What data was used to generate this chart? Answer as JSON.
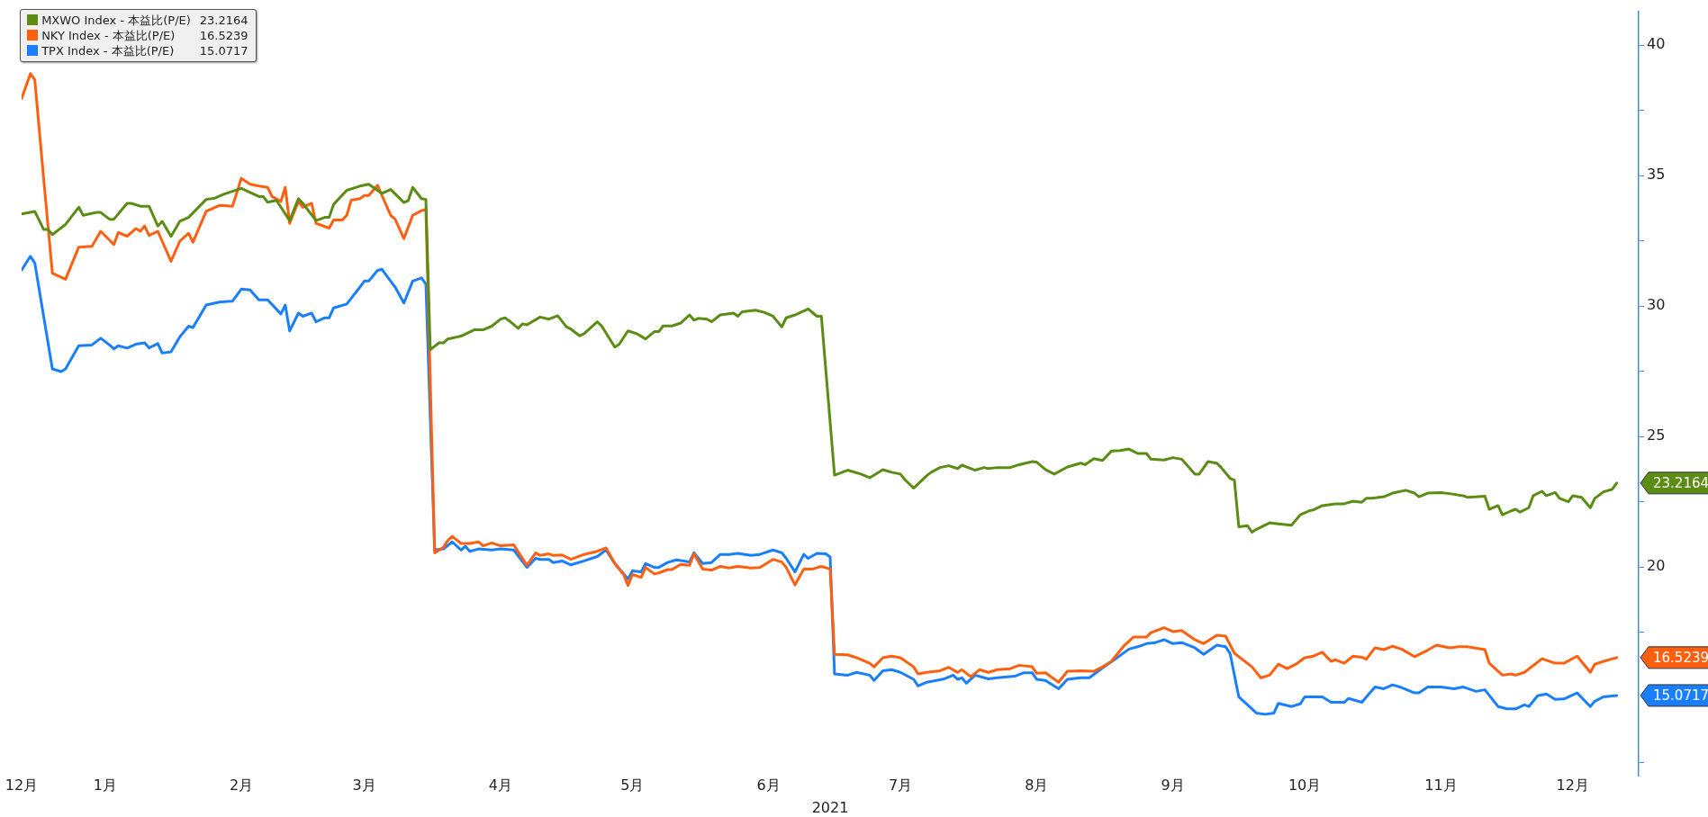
{
  "chart_data": {
    "type": "line",
    "xlabel": "2021",
    "legend": "top left",
    "grid": false,
    "marker": "none",
    "line_style": "solid",
    "xlim": [
      "2020-12-28",
      "2021-12-31"
    ],
    "xticks": [
      {
        "value": "2020-12-28",
        "label": "12月"
      },
      {
        "value": "2021-01-16",
        "label": "1月"
      },
      {
        "value": "2021-02-16",
        "label": "2月"
      },
      {
        "value": "2021-03-16",
        "label": "3月"
      },
      {
        "value": "2021-04-16",
        "label": "4月"
      },
      {
        "value": "2021-05-16",
        "label": "5月"
      },
      {
        "value": "2021-06-16",
        "label": "6月"
      },
      {
        "value": "2021-07-16",
        "label": "7月"
      },
      {
        "value": "2021-08-16",
        "label": "8月"
      },
      {
        "value": "2021-09-16",
        "label": "9月"
      },
      {
        "value": "2021-10-16",
        "label": "10月"
      },
      {
        "value": "2021-11-16",
        "label": "11月"
      },
      {
        "value": "2021-12-16",
        "label": "12月"
      }
    ],
    "ylim": [
      12,
      41.3
    ],
    "yticks": [
      {
        "value": 12.5,
        "label": null
      },
      {
        "value": 17.5,
        "label": null
      },
      20,
      {
        "value": 22.5,
        "label": null
      },
      25,
      {
        "value": 27.5,
        "label": null
      },
      30,
      {
        "value": 32.5,
        "label": null
      },
      35,
      {
        "value": 37.5,
        "label": null
      },
      40
    ],
    "series": [
      {
        "name": "MXWO Index - 本益比(P/E)",
        "color": "#5b8c14",
        "x": [
          "2020-12-28",
          "2020-12-31",
          "2021-01-02",
          "2021-01-03",
          "2021-01-04",
          "2021-01-07",
          "2021-01-10",
          "2021-01-11",
          "2021-01-14",
          "2021-01-15",
          "2021-01-17",
          "2021-01-18",
          "2021-01-21",
          "2021-01-22",
          "2021-01-24",
          "2021-01-26",
          "2021-01-28",
          "2021-01-29",
          "2021-01-31",
          "2021-02-02",
          "2021-02-04",
          "2021-02-08",
          "2021-02-10",
          "2021-02-12",
          "2021-02-16",
          "2021-02-20",
          "2021-02-21",
          "2021-02-22",
          "2021-02-24",
          "2021-02-27",
          "2021-03-01",
          "2021-03-02",
          "2021-03-05",
          "2021-03-07",
          "2021-03-08",
          "2021-03-09",
          "2021-03-12",
          "2021-03-15",
          "2021-03-17",
          "2021-03-19",
          "2021-03-20",
          "2021-03-22",
          "2021-03-25",
          "2021-03-26",
          "2021-03-27",
          "2021-03-29",
          "2021-03-30",
          "2021-03-31",
          "2021-04-02",
          "2021-04-03",
          "2021-04-04",
          "2021-04-07",
          "2021-04-10",
          "2021-04-12",
          "2021-04-14",
          "2021-04-16",
          "2021-04-17",
          "2021-04-18",
          "2021-04-20",
          "2021-04-21",
          "2021-04-22",
          "2021-04-25",
          "2021-04-27",
          "2021-04-29",
          "2021-05-01",
          "2021-05-02",
          "2021-05-04",
          "2021-05-05",
          "2021-05-08",
          "2021-05-09",
          "2021-05-12",
          "2021-05-13",
          "2021-05-15",
          "2021-05-17",
          "2021-05-19",
          "2021-05-21",
          "2021-05-22",
          "2021-05-23",
          "2021-05-25",
          "2021-05-27",
          "2021-05-29",
          "2021-05-30",
          "2021-05-31",
          "2021-06-02",
          "2021-06-03",
          "2021-06-05",
          "2021-06-08",
          "2021-06-09",
          "2021-06-10",
          "2021-06-13",
          "2021-06-15",
          "2021-06-17",
          "2021-06-19",
          "2021-06-20",
          "2021-06-22",
          "2021-06-24",
          "2021-06-25",
          "2021-06-27",
          "2021-06-28",
          "2021-07-01",
          "2021-07-04",
          "2021-07-07",
          "2021-07-09",
          "2021-07-12",
          "2021-07-14",
          "2021-07-16",
          "2021-07-17",
          "2021-07-19",
          "2021-07-22",
          "2021-07-23",
          "2021-07-25",
          "2021-07-27",
          "2021-07-29",
          "2021-07-30",
          "2021-08-02",
          "2021-08-04",
          "2021-08-05",
          "2021-08-07",
          "2021-08-10",
          "2021-08-12",
          "2021-08-15",
          "2021-08-16",
          "2021-08-18",
          "2021-08-20",
          "2021-08-23",
          "2021-08-26",
          "2021-08-27",
          "2021-08-29",
          "2021-08-31",
          "2021-09-02",
          "2021-09-04",
          "2021-09-06",
          "2021-09-08",
          "2021-09-10",
          "2021-09-11",
          "2021-09-14",
          "2021-09-16",
          "2021-09-18",
          "2021-09-19",
          "2021-09-21",
          "2021-09-22",
          "2021-09-24",
          "2021-09-26",
          "2021-09-27",
          "2021-09-29",
          "2021-09-30",
          "2021-10-01",
          "2021-10-03",
          "2021-10-04",
          "2021-10-05",
          "2021-10-08",
          "2021-10-10",
          "2021-10-13",
          "2021-10-15",
          "2021-10-17",
          "2021-10-18",
          "2021-10-20",
          "2021-10-23",
          "2021-10-25",
          "2021-10-27",
          "2021-10-29",
          "2021-10-30",
          "2021-10-31",
          "2021-11-03",
          "2021-11-05",
          "2021-11-08",
          "2021-11-10",
          "2021-11-11",
          "2021-11-13",
          "2021-11-16",
          "2021-11-18",
          "2021-11-21",
          "2021-11-22",
          "2021-11-26",
          "2021-11-27",
          "2021-11-29",
          "2021-11-30",
          "2021-12-02",
          "2021-12-03",
          "2021-12-04",
          "2021-12-06",
          "2021-12-07",
          "2021-12-09",
          "2021-12-10",
          "2021-12-12",
          "2021-12-13",
          "2021-12-15",
          "2021-12-16",
          "2021-12-18",
          "2021-12-20",
          "2021-12-21",
          "2021-12-23",
          "2021-12-25",
          "2021-12-26"
        ],
        "values": [
          33.53,
          33.63,
          32.94,
          32.94,
          32.74,
          33.13,
          33.79,
          33.48,
          33.59,
          33.59,
          33.33,
          33.33,
          33.94,
          33.94,
          33.83,
          33.83,
          33.07,
          33.25,
          32.67,
          33.25,
          33.4,
          34.09,
          34.14,
          34.29,
          34.51,
          34.2,
          34.2,
          33.98,
          34.05,
          33.28,
          34.12,
          33.94,
          33.28,
          33.4,
          33.4,
          33.9,
          34.44,
          34.6,
          34.67,
          34.44,
          34.32,
          34.47,
          33.97,
          34.05,
          34.55,
          34.12,
          34.09,
          28.33,
          28.59,
          28.59,
          28.74,
          28.85,
          29.09,
          29.09,
          29.23,
          29.5,
          29.55,
          29.43,
          29.15,
          29.32,
          29.28,
          29.58,
          29.5,
          29.63,
          29.2,
          29.12,
          28.86,
          28.94,
          29.4,
          29.24,
          28.43,
          28.54,
          29.05,
          28.94,
          28.74,
          29.02,
          29.02,
          29.24,
          29.24,
          29.35,
          29.66,
          29.46,
          29.53,
          29.5,
          29.4,
          29.66,
          29.73,
          29.61,
          29.78,
          29.84,
          29.76,
          29.61,
          29.2,
          29.55,
          29.66,
          29.81,
          29.89,
          29.61,
          29.61,
          23.52,
          23.71,
          23.56,
          23.42,
          23.73,
          23.63,
          23.56,
          23.35,
          23.02,
          23.5,
          23.63,
          23.81,
          23.88,
          23.77,
          23.9,
          23.71,
          23.81,
          23.77,
          23.81,
          23.81,
          23.92,
          24.04,
          24.02,
          23.73,
          23.56,
          23.83,
          23.98,
          23.92,
          24.15,
          24.08,
          24.44,
          24.46,
          24.52,
          24.35,
          24.35,
          24.13,
          24.1,
          24.19,
          24.13,
          23.94,
          23.56,
          23.56,
          24.04,
          23.98,
          23.81,
          23.4,
          23.33,
          21.54,
          21.58,
          21.33,
          21.44,
          21.69,
          21.65,
          21.6,
          22.0,
          22.15,
          22.19,
          22.35,
          22.42,
          22.42,
          22.52,
          22.48,
          22.63,
          22.63,
          22.69,
          22.83,
          22.94,
          22.83,
          22.69,
          22.83,
          22.85,
          22.81,
          22.73,
          22.67,
          22.71,
          22.21,
          22.35,
          22.0,
          22.15,
          22.21,
          22.1,
          22.27,
          22.73,
          22.9,
          22.73,
          22.85,
          22.63,
          22.5,
          22.73,
          22.67,
          22.27,
          22.63,
          22.88,
          22.98,
          23.2164
        ]
      },
      {
        "name": "NKY Index - 本益比(P/E)",
        "color": "#ff6010",
        "x": [
          "2020-12-28",
          "2020-12-30",
          "2020-12-31",
          "2021-01-02",
          "2021-01-04",
          "2021-01-07",
          "2021-01-10",
          "2021-01-13",
          "2021-01-15",
          "2021-01-18",
          "2021-01-19",
          "2021-01-21",
          "2021-01-23",
          "2021-01-24",
          "2021-01-25",
          "2021-01-26",
          "2021-01-28",
          "2021-01-31",
          "2021-02-02",
          "2021-02-04",
          "2021-02-05",
          "2021-02-08",
          "2021-02-11",
          "2021-02-14",
          "2021-02-16",
          "2021-02-18",
          "2021-02-20",
          "2021-02-22",
          "2021-02-23",
          "2021-02-25",
          "2021-02-26",
          "2021-02-27",
          "2021-03-01",
          "2021-03-02",
          "2021-03-04",
          "2021-03-05",
          "2021-03-08",
          "2021-03-09",
          "2021-03-11",
          "2021-03-12",
          "2021-03-13",
          "2021-03-15",
          "2021-03-16",
          "2021-03-17",
          "2021-03-19",
          "2021-03-20",
          "2021-03-22",
          "2021-03-23",
          "2021-03-25",
          "2021-03-27",
          "2021-03-29",
          "2021-03-30",
          "2021-04-01",
          "2021-04-03",
          "2021-04-04",
          "2021-04-05",
          "2021-04-07",
          "2021-04-09",
          "2021-04-11",
          "2021-04-12",
          "2021-04-14",
          "2021-04-16",
          "2021-04-19",
          "2021-04-22",
          "2021-04-24",
          "2021-04-25",
          "2021-04-27",
          "2021-04-28",
          "2021-04-30",
          "2021-05-02",
          "2021-05-05",
          "2021-05-08",
          "2021-05-10",
          "2021-05-12",
          "2021-05-14",
          "2021-05-15",
          "2021-05-16",
          "2021-05-18",
          "2021-05-19",
          "2021-05-21",
          "2021-05-22",
          "2021-05-24",
          "2021-05-25",
          "2021-05-27",
          "2021-05-29",
          "2021-05-30",
          "2021-06-01",
          "2021-06-03",
          "2021-06-05",
          "2021-06-07",
          "2021-06-09",
          "2021-06-12",
          "2021-06-14",
          "2021-06-17",
          "2021-06-19",
          "2021-06-20",
          "2021-06-22",
          "2021-06-24",
          "2021-06-26",
          "2021-06-28",
          "2021-06-30",
          "2021-07-01",
          "2021-07-04",
          "2021-07-06",
          "2021-07-09",
          "2021-07-10",
          "2021-07-12",
          "2021-07-14",
          "2021-07-16",
          "2021-07-19",
          "2021-07-20",
          "2021-07-22",
          "2021-07-25",
          "2021-07-27",
          "2021-07-29",
          "2021-07-30",
          "2021-08-01",
          "2021-08-03",
          "2021-08-05",
          "2021-08-07",
          "2021-08-10",
          "2021-08-12",
          "2021-08-15",
          "2021-08-16",
          "2021-08-18",
          "2021-08-21",
          "2021-08-23",
          "2021-08-26",
          "2021-08-29",
          "2021-08-31",
          "2021-09-02",
          "2021-09-05",
          "2021-09-07",
          "2021-09-10",
          "2021-09-11",
          "2021-09-14",
          "2021-09-16",
          "2021-09-18",
          "2021-09-21",
          "2021-09-23",
          "2021-09-26",
          "2021-09-28",
          "2021-09-30",
          "2021-10-04",
          "2021-10-06",
          "2021-10-08",
          "2021-10-10",
          "2021-10-12",
          "2021-10-14",
          "2021-10-16",
          "2021-10-18",
          "2021-10-20",
          "2021-10-22",
          "2021-10-23",
          "2021-10-25",
          "2021-10-27",
          "2021-10-29",
          "2021-10-30",
          "2021-11-01",
          "2021-11-03",
          "2021-11-05",
          "2021-11-07",
          "2021-11-10",
          "2021-11-13",
          "2021-11-15",
          "2021-11-18",
          "2021-11-20",
          "2021-11-22",
          "2021-11-26",
          "2021-11-27",
          "2021-11-30",
          "2021-12-02",
          "2021-12-03",
          "2021-12-05",
          "2021-12-09",
          "2021-12-12",
          "2021-12-14",
          "2021-12-17",
          "2021-12-20",
          "2021-12-21",
          "2021-12-23",
          "2021-12-26"
        ],
        "values": [
          37.96,
          38.91,
          38.68,
          34.93,
          31.26,
          31.03,
          32.26,
          32.29,
          32.87,
          32.36,
          32.82,
          32.68,
          32.97,
          32.87,
          33.07,
          32.71,
          32.87,
          31.72,
          32.49,
          32.79,
          32.45,
          33.63,
          33.86,
          33.83,
          34.9,
          34.67,
          34.6,
          34.55,
          34.2,
          34.01,
          34.55,
          33.17,
          34.01,
          33.79,
          33.94,
          33.17,
          32.99,
          33.3,
          33.3,
          33.48,
          34.06,
          34.12,
          34.24,
          34.24,
          34.63,
          34.24,
          33.48,
          33.33,
          32.59,
          33.48,
          33.66,
          33.71,
          20.54,
          20.75,
          21.02,
          21.17,
          20.9,
          20.9,
          20.96,
          20.81,
          20.92,
          20.81,
          20.85,
          20.06,
          20.54,
          20.44,
          20.5,
          20.44,
          20.46,
          20.29,
          20.48,
          20.6,
          20.73,
          20.13,
          19.71,
          19.29,
          19.71,
          19.6,
          19.98,
          19.73,
          19.77,
          19.9,
          19.9,
          20.1,
          20.06,
          20.5,
          19.92,
          19.88,
          20.02,
          19.96,
          20.02,
          19.96,
          19.98,
          20.29,
          20.19,
          19.98,
          19.31,
          19.92,
          19.92,
          20.02,
          19.92,
          16.65,
          16.63,
          16.52,
          16.31,
          16.17,
          16.52,
          16.58,
          16.52,
          16.17,
          15.9,
          15.96,
          16.02,
          16.15,
          15.96,
          16.06,
          15.79,
          16.06,
          15.96,
          16.06,
          16.1,
          16.23,
          16.17,
          15.92,
          15.94,
          15.58,
          16.0,
          16.02,
          16.0,
          16.17,
          16.38,
          17.0,
          17.31,
          17.31,
          17.48,
          17.67,
          17.52,
          17.56,
          17.21,
          17.06,
          17.38,
          17.35,
          16.69,
          16.17,
          15.75,
          15.85,
          16.27,
          16.1,
          16.27,
          16.52,
          16.58,
          16.73,
          16.38,
          16.44,
          16.31,
          16.58,
          16.54,
          16.46,
          16.9,
          16.83,
          16.96,
          16.85,
          16.56,
          16.81,
          17.0,
          16.9,
          16.94,
          16.94,
          16.83,
          16.31,
          15.85,
          15.9,
          15.85,
          15.96,
          16.48,
          16.31,
          16.31,
          16.58,
          15.96,
          16.27,
          16.38,
          16.5239
        ]
      },
      {
        "name": "TPX Index - 本益比(P/E)",
        "color": "#1a7fff",
        "x": [
          "2020-12-28",
          "2020-12-30",
          "2020-12-31",
          "2021-01-04",
          "2021-01-06",
          "2021-01-07",
          "2021-01-10",
          "2021-01-13",
          "2021-01-15",
          "2021-01-17",
          "2021-01-18",
          "2021-01-19",
          "2021-01-21",
          "2021-01-23",
          "2021-01-25",
          "2021-01-26",
          "2021-01-28",
          "2021-01-29",
          "2021-01-31",
          "2021-02-02",
          "2021-02-04",
          "2021-02-05",
          "2021-02-08",
          "2021-02-11",
          "2021-02-14",
          "2021-02-16",
          "2021-02-18",
          "2021-02-20",
          "2021-02-22",
          "2021-02-25",
          "2021-02-26",
          "2021-02-27",
          "2021-03-01",
          "2021-03-02",
          "2021-03-04",
          "2021-03-05",
          "2021-03-07",
          "2021-03-08",
          "2021-03-09",
          "2021-03-12",
          "2021-03-15",
          "2021-03-16",
          "2021-03-17",
          "2021-03-19",
          "2021-03-20",
          "2021-03-23",
          "2021-03-25",
          "2021-03-27",
          "2021-03-29",
          "2021-03-30",
          "2021-04-01",
          "2021-04-03",
          "2021-04-05",
          "2021-04-07",
          "2021-04-08",
          "2021-04-09",
          "2021-04-11",
          "2021-04-14",
          "2021-04-16",
          "2021-04-19",
          "2021-04-22",
          "2021-04-24",
          "2021-04-25",
          "2021-04-27",
          "2021-04-28",
          "2021-04-30",
          "2021-05-02",
          "2021-05-05",
          "2021-05-08",
          "2021-05-10",
          "2021-05-12",
          "2021-05-15",
          "2021-05-16",
          "2021-05-18",
          "2021-05-19",
          "2021-05-21",
          "2021-05-22",
          "2021-05-24",
          "2021-05-26",
          "2021-05-29",
          "2021-05-30",
          "2021-06-01",
          "2021-06-03",
          "2021-06-05",
          "2021-06-07",
          "2021-06-09",
          "2021-06-12",
          "2021-06-14",
          "2021-06-17",
          "2021-06-19",
          "2021-06-20",
          "2021-06-22",
          "2021-06-24",
          "2021-06-25",
          "2021-06-27",
          "2021-06-29",
          "2021-06-30",
          "2021-07-01",
          "2021-07-04",
          "2021-07-06",
          "2021-07-09",
          "2021-07-10",
          "2021-07-12",
          "2021-07-14",
          "2021-07-16",
          "2021-07-19",
          "2021-07-20",
          "2021-07-22",
          "2021-07-26",
          "2021-07-28",
          "2021-07-29",
          "2021-07-30",
          "2021-07-31",
          "2021-08-02",
          "2021-08-05",
          "2021-08-07",
          "2021-08-11",
          "2021-08-13",
          "2021-08-15",
          "2021-08-16",
          "2021-08-18",
          "2021-08-21",
          "2021-08-23",
          "2021-08-26",
          "2021-08-28",
          "2021-08-31",
          "2021-09-03",
          "2021-09-06",
          "2021-09-08",
          "2021-09-10",
          "2021-09-12",
          "2021-09-14",
          "2021-09-16",
          "2021-09-18",
          "2021-09-21",
          "2021-09-23",
          "2021-09-26",
          "2021-09-28",
          "2021-09-29",
          "2021-10-01",
          "2021-10-03",
          "2021-10-05",
          "2021-10-07",
          "2021-10-09",
          "2021-10-10",
          "2021-10-13",
          "2021-10-15",
          "2021-10-16",
          "2021-10-20",
          "2021-10-22",
          "2021-10-25",
          "2021-10-26",
          "2021-10-29",
          "2021-11-01",
          "2021-11-03",
          "2021-11-05",
          "2021-11-07",
          "2021-11-10",
          "2021-11-11",
          "2021-11-13",
          "2021-11-16",
          "2021-11-19",
          "2021-11-21",
          "2021-11-24",
          "2021-11-26",
          "2021-11-29",
          "2021-12-01",
          "2021-12-03",
          "2021-12-05",
          "2021-12-06",
          "2021-12-08",
          "2021-12-10",
          "2021-12-12",
          "2021-12-14",
          "2021-12-17",
          "2021-12-20",
          "2021-12-21",
          "2021-12-23",
          "2021-12-26"
        ],
        "values": [
          31.38,
          31.91,
          31.65,
          27.59,
          27.49,
          27.59,
          28.48,
          28.51,
          28.77,
          28.51,
          28.36,
          28.48,
          28.39,
          28.54,
          28.59,
          28.4,
          28.56,
          28.2,
          28.25,
          28.82,
          29.23,
          29.18,
          30.04,
          30.15,
          30.19,
          30.65,
          30.62,
          30.24,
          30.24,
          29.7,
          30.04,
          29.05,
          29.73,
          29.61,
          29.73,
          29.4,
          29.55,
          29.55,
          29.93,
          30.08,
          30.73,
          30.96,
          30.96,
          31.37,
          31.41,
          30.73,
          30.12,
          30.96,
          31.08,
          30.85,
          20.65,
          20.69,
          20.96,
          20.65,
          20.79,
          20.6,
          20.69,
          20.65,
          20.69,
          20.65,
          19.98,
          20.33,
          20.29,
          20.29,
          20.17,
          20.23,
          20.08,
          20.23,
          20.4,
          20.65,
          20.13,
          19.54,
          19.85,
          19.81,
          20.13,
          19.98,
          19.98,
          20.17,
          20.27,
          20.19,
          20.54,
          20.13,
          20.17,
          20.48,
          20.48,
          20.52,
          20.44,
          20.48,
          20.65,
          20.54,
          20.33,
          19.81,
          20.48,
          20.33,
          20.52,
          20.5,
          20.38,
          15.9,
          15.85,
          15.96,
          15.85,
          15.65,
          16.02,
          16.06,
          15.96,
          15.69,
          15.44,
          15.58,
          15.71,
          15.85,
          15.69,
          15.75,
          15.54,
          15.85,
          15.71,
          15.75,
          15.81,
          15.94,
          15.94,
          15.69,
          15.65,
          15.33,
          15.69,
          15.75,
          15.75,
          16.13,
          16.48,
          16.85,
          16.94,
          17.06,
          17.1,
          17.21,
          17.06,
          17.1,
          16.9,
          16.65,
          17.0,
          16.94,
          16.69,
          15.02,
          14.71,
          14.4,
          14.35,
          14.4,
          14.77,
          14.65,
          14.75,
          15.02,
          15.02,
          14.81,
          14.81,
          14.96,
          14.81,
          15.4,
          15.33,
          15.48,
          15.38,
          15.17,
          15.17,
          15.4,
          15.4,
          15.33,
          15.4,
          15.23,
          15.29,
          14.65,
          14.56,
          14.56,
          14.71,
          14.65,
          15.06,
          15.13,
          14.92,
          14.94,
          15.17,
          14.65,
          14.85,
          15.02,
          15.0717
        ]
      }
    ],
    "annotations": [
      "23.2164",
      "16.5239",
      "15.0717"
    ]
  }
}
